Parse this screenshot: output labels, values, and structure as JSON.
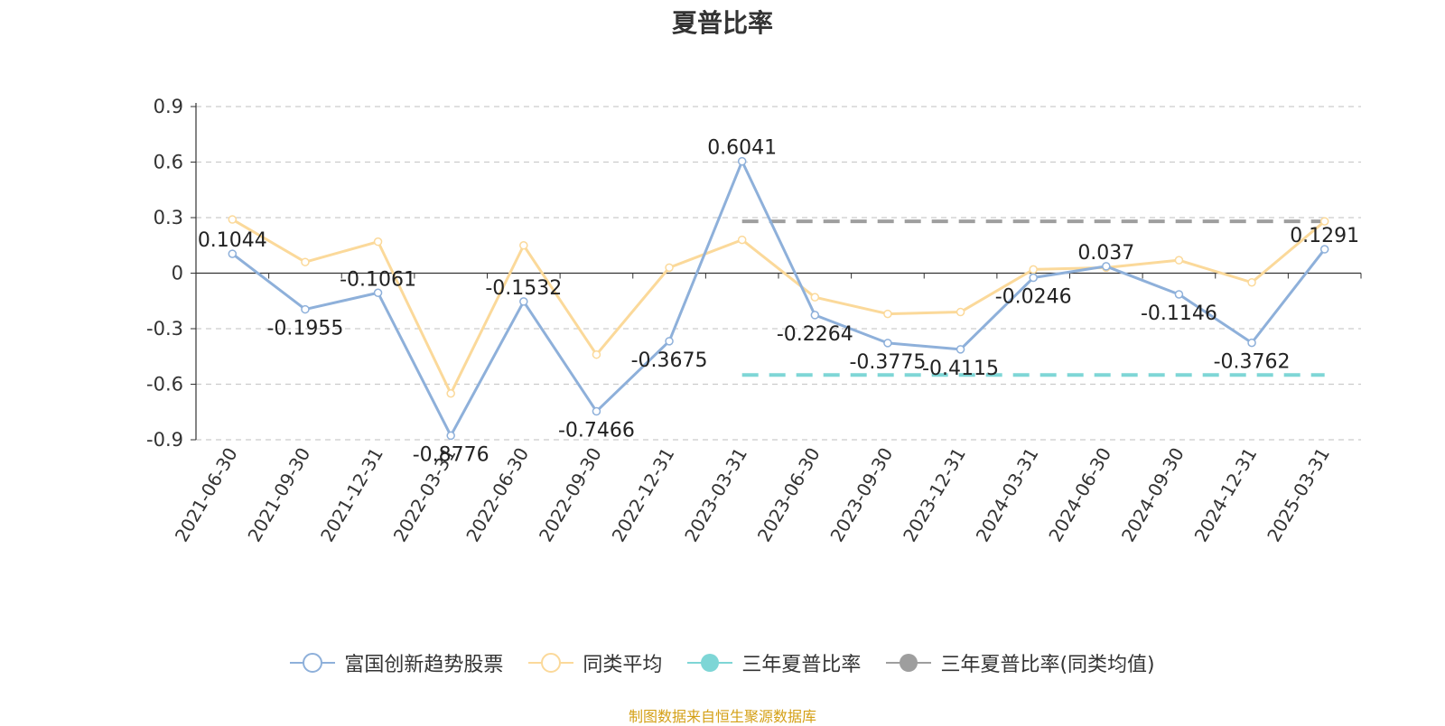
{
  "title": "夏普比率",
  "source_note": "制图数据来自恒生聚源数据库",
  "chart_data": {
    "type": "line",
    "categories": [
      "2021-06-30",
      "2021-09-30",
      "2021-12-31",
      "2022-03-31",
      "2022-06-30",
      "2022-09-30",
      "2022-12-31",
      "2023-03-31",
      "2023-06-30",
      "2023-09-30",
      "2023-12-31",
      "2024-03-31",
      "2024-06-30",
      "2024-09-30",
      "2024-12-31",
      "2025-03-31"
    ],
    "yticks": [
      "0.9",
      "0.6",
      "0.3",
      "0",
      "-0.3",
      "-0.6",
      "-0.9"
    ],
    "ylim": [
      -0.9,
      0.9
    ],
    "grid": true,
    "legend_position": "bottom",
    "series": [
      {
        "name": "富国创新趋势股票",
        "color": "#8eb0da",
        "values": [
          0.1044,
          -0.1955,
          -0.1061,
          -0.8776,
          -0.1532,
          -0.7466,
          -0.3675,
          0.6041,
          -0.2264,
          -0.3775,
          -0.4115,
          -0.0246,
          0.037,
          -0.1146,
          -0.3762,
          0.1291
        ],
        "labels": [
          "0.1044",
          "-0.1955",
          "-0.1061",
          "-0.8776",
          "-0.1532",
          "-0.7466",
          "-0.3675",
          "0.6041",
          "-0.2264",
          "-0.3775",
          "-0.4115",
          "-0.0246",
          "0.037",
          "-0.1146",
          "-0.3762",
          "0.1291"
        ]
      },
      {
        "name": "同类平均",
        "color": "#fbd99a",
        "values": [
          0.29,
          0.06,
          0.17,
          -0.65,
          0.15,
          -0.44,
          0.03,
          0.18,
          -0.13,
          -0.22,
          -0.21,
          0.02,
          0.03,
          0.07,
          -0.05,
          0.28
        ]
      },
      {
        "name": "三年夏普比率",
        "color": "#7ed6d6",
        "dashed": true,
        "start_index": 7,
        "end_index": 15,
        "value": -0.55
      },
      {
        "name": "三年夏普比率(同类均值)",
        "color": "#9e9e9e",
        "dashed": true,
        "start_index": 7,
        "end_index": 15,
        "value": 0.28
      }
    ]
  }
}
